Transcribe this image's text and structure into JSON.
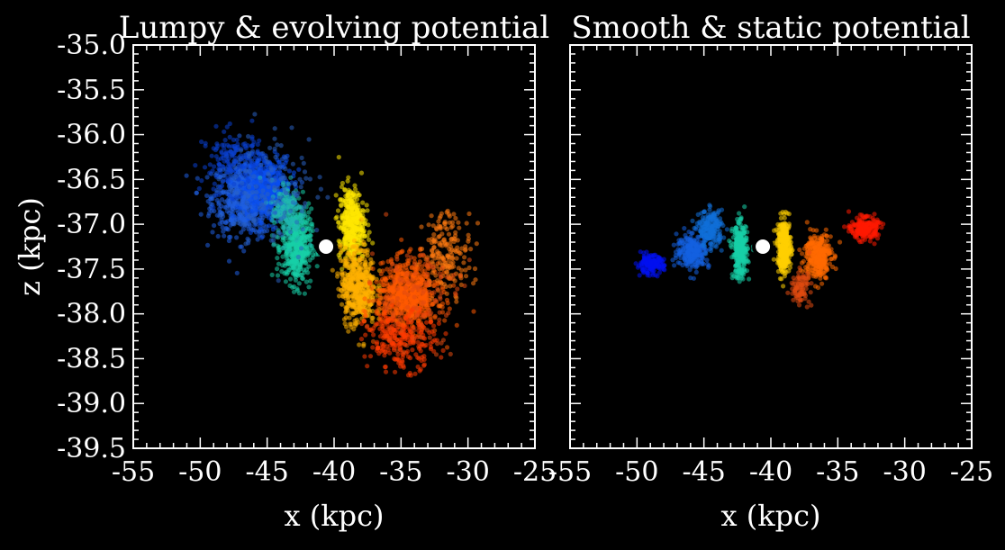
{
  "chart_data": [
    {
      "type": "scatter",
      "title": "Lumpy & evolving potential",
      "xlabel": "x (kpc)",
      "ylabel": "z (kpc)",
      "xlim": [
        -55,
        -25
      ],
      "ylim": [
        -39.5,
        -35.0
      ],
      "xticks": [
        "-55",
        "-50",
        "-45",
        "-40",
        "-35",
        "-30",
        "-25"
      ],
      "yticks": [
        "-35.0",
        "-35.5",
        "-36.0",
        "-36.5",
        "-37.0",
        "-37.5",
        "-38.0",
        "-38.5",
        "-39.0",
        "-39.5"
      ],
      "background": "#000000",
      "colormap": "jet",
      "marker": {
        "x": -40.6,
        "y": -37.25,
        "fill": "#ffffff",
        "stroke": "#000000"
      },
      "clusters": [
        {
          "cx": -46.5,
          "cy": -36.7,
          "sx": 2.6,
          "sy": 0.42,
          "n": 700,
          "color": "#1f5fe0"
        },
        {
          "cx": -45.0,
          "cy": -36.6,
          "sx": 1.8,
          "sy": 0.35,
          "n": 380,
          "color": "#0a4ef0"
        },
        {
          "cx": -47.5,
          "cy": -36.3,
          "sx": 2.4,
          "sy": 0.35,
          "n": 160,
          "color": "#0a3fd0"
        },
        {
          "cx": -42.8,
          "cy": -37.25,
          "sx": 1.1,
          "sy": 0.42,
          "n": 420,
          "color": "#18d0a8"
        },
        {
          "cx": -43.5,
          "cy": -36.85,
          "sx": 1.2,
          "sy": 0.35,
          "n": 160,
          "color": "#20b8b0"
        },
        {
          "cx": -38.7,
          "cy": -37.0,
          "sx": 0.95,
          "sy": 0.42,
          "n": 420,
          "color": "#ffe800"
        },
        {
          "cx": -38.2,
          "cy": -37.7,
          "sx": 1.3,
          "sy": 0.42,
          "n": 480,
          "color": "#ffb000"
        },
        {
          "cx": -34.5,
          "cy": -37.8,
          "sx": 2.3,
          "sy": 0.38,
          "n": 700,
          "color": "#ff5a00"
        },
        {
          "cx": -35.0,
          "cy": -38.3,
          "sx": 2.6,
          "sy": 0.32,
          "n": 240,
          "color": "#ff3a00"
        },
        {
          "cx": -31.5,
          "cy": -37.3,
          "sx": 1.8,
          "sy": 0.45,
          "n": 180,
          "color": "#ff7a10"
        },
        {
          "cx": -44.5,
          "cy": -36.6,
          "sx": 3.4,
          "sy": 0.7,
          "n": 120,
          "color": "#2a60c0"
        },
        {
          "cx": -34.0,
          "cy": -37.8,
          "sx": 3.4,
          "sy": 0.6,
          "n": 120,
          "color": "#e04a10"
        }
      ]
    },
    {
      "type": "scatter",
      "title": "Smooth & static potential",
      "xlabel": "x (kpc)",
      "xlim": [
        -55,
        -25
      ],
      "ylim": [
        -39.5,
        -35.0
      ],
      "xticks": [
        "-55",
        "-50",
        "-45",
        "-40",
        "-35",
        "-30",
        "-25"
      ],
      "background": "#000000",
      "colormap": "jet",
      "marker": {
        "x": -40.6,
        "y": -37.25,
        "fill": "#ffffff",
        "stroke": "#000000"
      },
      "clusters": [
        {
          "cx": -49.0,
          "cy": -37.45,
          "sx": 1.0,
          "sy": 0.1,
          "n": 160,
          "color": "#0010f0"
        },
        {
          "cx": -45.8,
          "cy": -37.3,
          "sx": 1.2,
          "sy": 0.18,
          "n": 260,
          "color": "#1460e0"
        },
        {
          "cx": -44.5,
          "cy": -37.05,
          "sx": 0.9,
          "sy": 0.2,
          "n": 200,
          "color": "#1070d8"
        },
        {
          "cx": -42.3,
          "cy": -37.3,
          "sx": 0.55,
          "sy": 0.3,
          "n": 300,
          "color": "#18d0a8"
        },
        {
          "cx": -39.0,
          "cy": -37.25,
          "sx": 0.5,
          "sy": 0.3,
          "n": 320,
          "color": "#ffd000"
        },
        {
          "cx": -36.5,
          "cy": -37.35,
          "sx": 1.0,
          "sy": 0.25,
          "n": 320,
          "color": "#ff6a00"
        },
        {
          "cx": -33.0,
          "cy": -37.05,
          "sx": 1.0,
          "sy": 0.12,
          "n": 220,
          "color": "#ff1a00"
        },
        {
          "cx": -37.8,
          "cy": -37.7,
          "sx": 0.7,
          "sy": 0.18,
          "n": 90,
          "color": "#e04a10"
        }
      ]
    }
  ]
}
